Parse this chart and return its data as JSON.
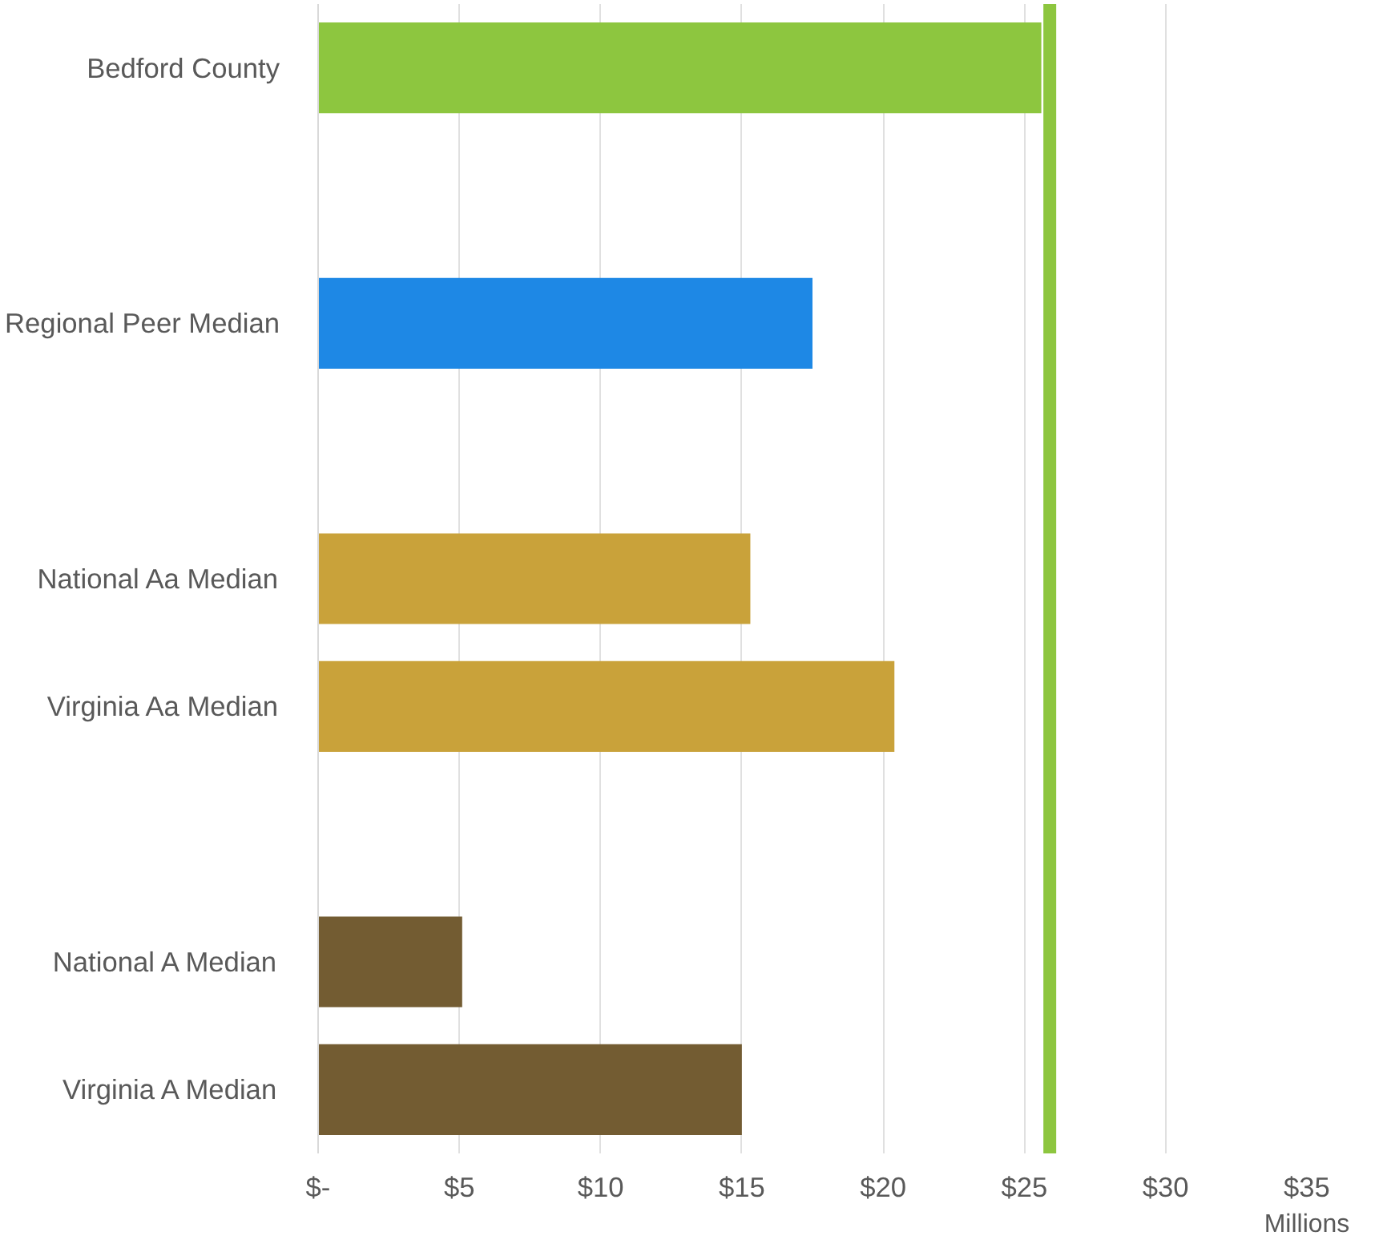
{
  "chart_data": {
    "type": "bar",
    "orientation": "horizontal",
    "categories": [
      "Bedford County",
      null,
      "Regional Peer Median",
      null,
      "National Aa Median",
      "Virginia Aa Median",
      null,
      "National A Median",
      "Virginia A Median"
    ],
    "values": [
      25.6,
      null,
      17.5,
      null,
      15.3,
      20.4,
      null,
      5.1,
      15.0
    ],
    "colors": [
      "#8dc63f",
      "#ffffff",
      "#1e88e5",
      "#ffffff",
      "#c9a23a",
      "#c9a23a",
      "#ffffff",
      "#735c32",
      "#735c32"
    ],
    "xlim": [
      0,
      35
    ],
    "xticks": [
      {
        "value": 0,
        "label": "$-"
      },
      {
        "value": 5,
        "label": "$5"
      },
      {
        "value": 10,
        "label": "$10"
      },
      {
        "value": 15,
        "label": "$15"
      },
      {
        "value": 20,
        "label": "$20"
      },
      {
        "value": 25,
        "label": "$25"
      },
      {
        "value": 30,
        "label": "$30"
      },
      {
        "value": 35,
        "label": "$35"
      }
    ],
    "xlabel": "Millions",
    "grid": "x",
    "ref_lines": [
      {
        "axis": "x",
        "value": 25.9,
        "label": null,
        "color": "#8dc63f"
      }
    ]
  }
}
